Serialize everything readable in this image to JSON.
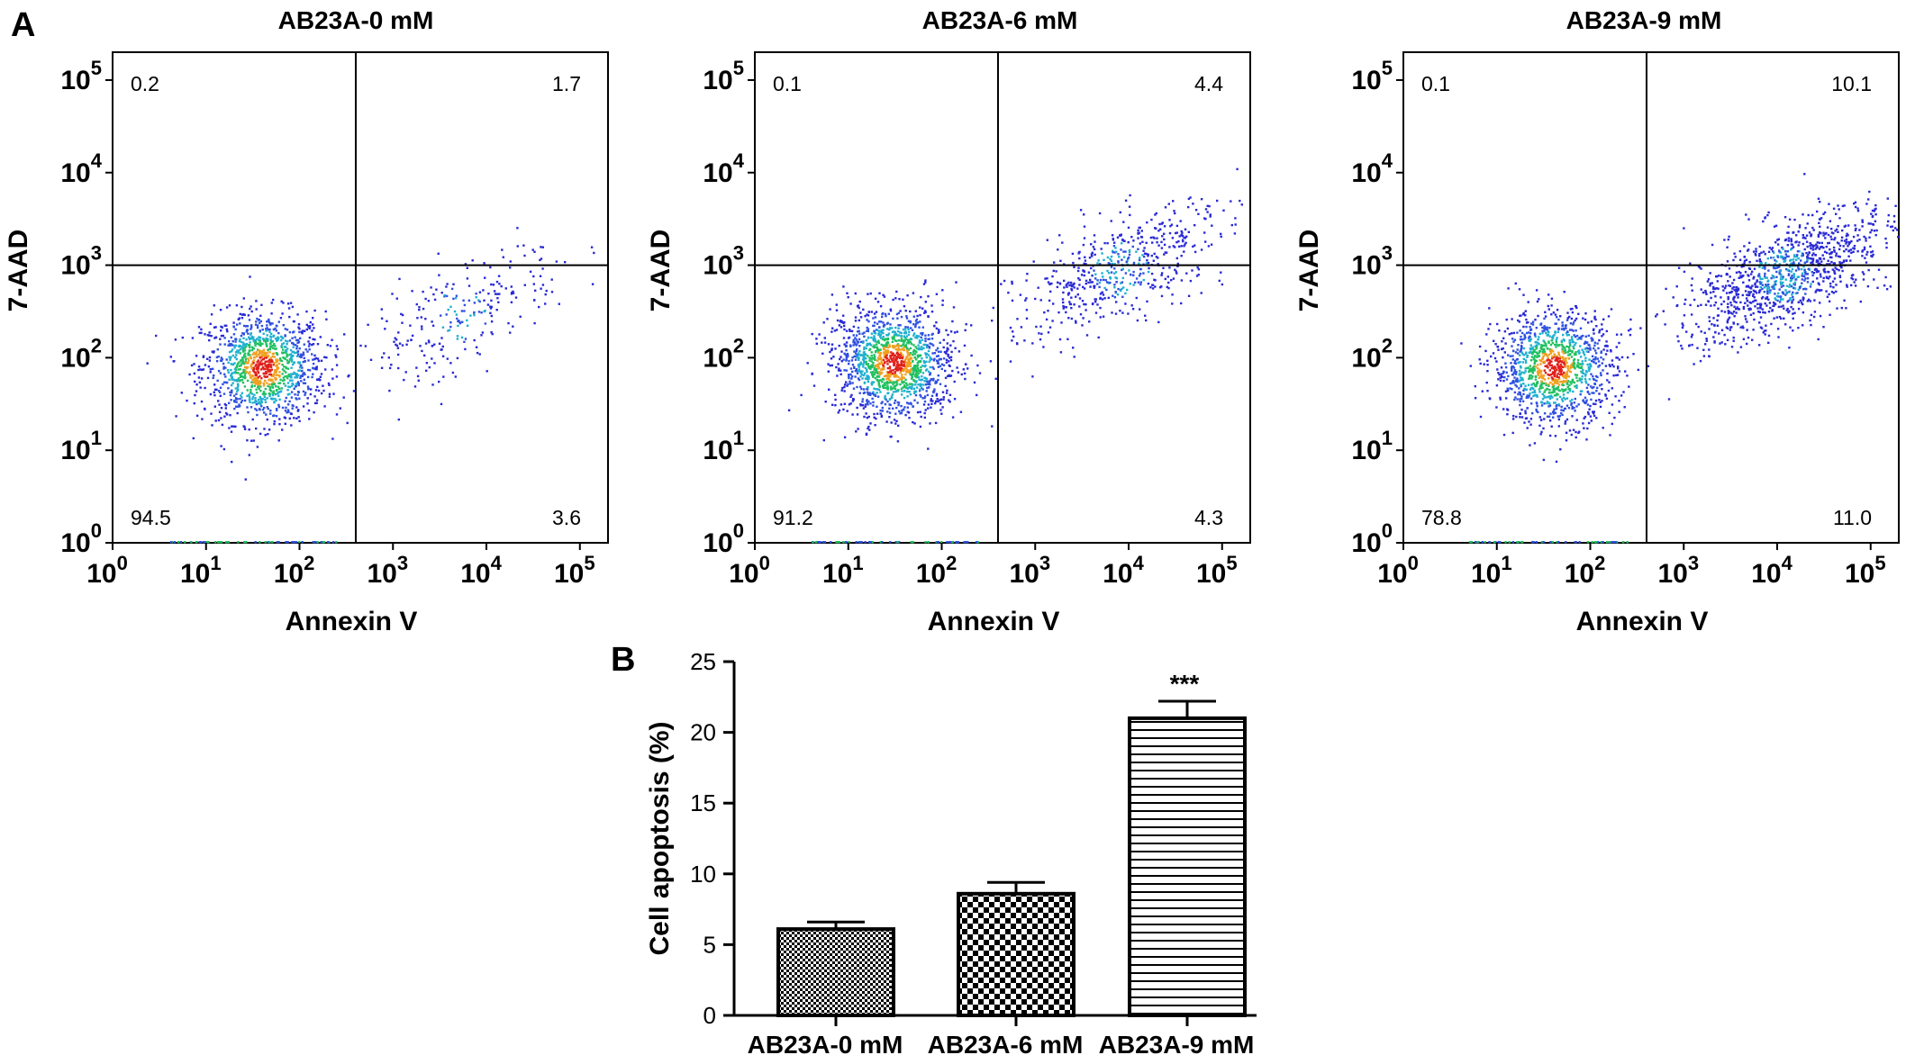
{
  "panel_labels": {
    "a": "A",
    "b": "B"
  },
  "chart_data": [
    {
      "type": "scatter",
      "title": "AB23A-0 mM",
      "xlabel": "Annexin V",
      "ylabel": "7-AAD",
      "x_scale": "log",
      "y_scale": "log",
      "xlim": [
        1,
        200000
      ],
      "ylim": [
        1,
        200000
      ],
      "x_ticks": [
        "10^0",
        "10^1",
        "10^2",
        "10^3",
        "10^4",
        "10^5"
      ],
      "y_ticks": [
        "10^0",
        "10^1",
        "10^2",
        "10^3",
        "10^4",
        "10^5"
      ],
      "quadrant_gate": {
        "x": 400,
        "y": 1000
      },
      "quadrant_percentages": {
        "upper_left": "0.2",
        "upper_right": "1.7",
        "lower_left": "94.5",
        "lower_right": "3.6"
      },
      "populations": [
        {
          "name": "",
          "center": [
            40,
            80
          ],
          "count": 1200
        },
        {
          "name": "",
          "center": [
            5000,
            300
          ],
          "count": 250
        }
      ]
    },
    {
      "type": "scatter",
      "title": "AB23A-6 mM",
      "xlabel": "Annexin V",
      "ylabel": "7-AAD",
      "x_scale": "log",
      "y_scale": "log",
      "xlim": [
        1,
        200000
      ],
      "ylim": [
        1,
        200000
      ],
      "x_ticks": [
        "10^0",
        "10^1",
        "10^2",
        "10^3",
        "10^4",
        "10^5"
      ],
      "y_ticks": [
        "10^0",
        "10^1",
        "10^2",
        "10^3",
        "10^4",
        "10^5"
      ],
      "quadrant_gate": {
        "x": 400,
        "y": 1000
      },
      "quadrant_percentages": {
        "upper_left": "0.1",
        "upper_right": "4.4",
        "lower_left": "91.2",
        "lower_right": "4.3"
      },
      "populations": [
        {
          "name": "",
          "center": [
            30,
            90
          ],
          "count": 1400
        },
        {
          "name": "",
          "center": [
            8000,
            900
          ],
          "count": 550
        }
      ]
    },
    {
      "type": "scatter",
      "title": "AB23A-9 mM",
      "xlabel": "Annexin V",
      "ylabel": "7-AAD",
      "x_scale": "log",
      "y_scale": "log",
      "xlim": [
        1,
        200000
      ],
      "ylim": [
        1,
        200000
      ],
      "x_ticks": [
        "10^0",
        "10^1",
        "10^2",
        "10^3",
        "10^4",
        "10^5"
      ],
      "y_ticks": [
        "10^0",
        "10^1",
        "10^2",
        "10^3",
        "10^4",
        "10^5"
      ],
      "quadrant_gate": {
        "x": 400,
        "y": 1000
      },
      "quadrant_percentages": {
        "upper_left": "0.1",
        "upper_right": "10.1",
        "lower_left": "78.8",
        "lower_right": "11.0"
      },
      "populations": [
        {
          "name": "",
          "center": [
            40,
            80
          ],
          "count": 1200
        },
        {
          "name": "",
          "center": [
            12000,
            800
          ],
          "count": 1100
        }
      ]
    },
    {
      "type": "bar",
      "categories": [
        "AB23A-0 mM",
        "AB23A-6 mM",
        "AB23A-9 mM"
      ],
      "values": [
        6.1,
        8.6,
        21.0
      ],
      "error": [
        0.5,
        0.8,
        1.2
      ],
      "patterns": [
        "dense-checker",
        "checker",
        "horizontal-lines"
      ],
      "significance": [
        "",
        "",
        "***"
      ],
      "title": "",
      "xlabel": "",
      "ylabel": "Cell apoptosis (%)",
      "ylim": [
        0,
        25
      ],
      "y_ticks": [
        "0",
        "5",
        "10",
        "15",
        "20",
        "25"
      ]
    }
  ]
}
